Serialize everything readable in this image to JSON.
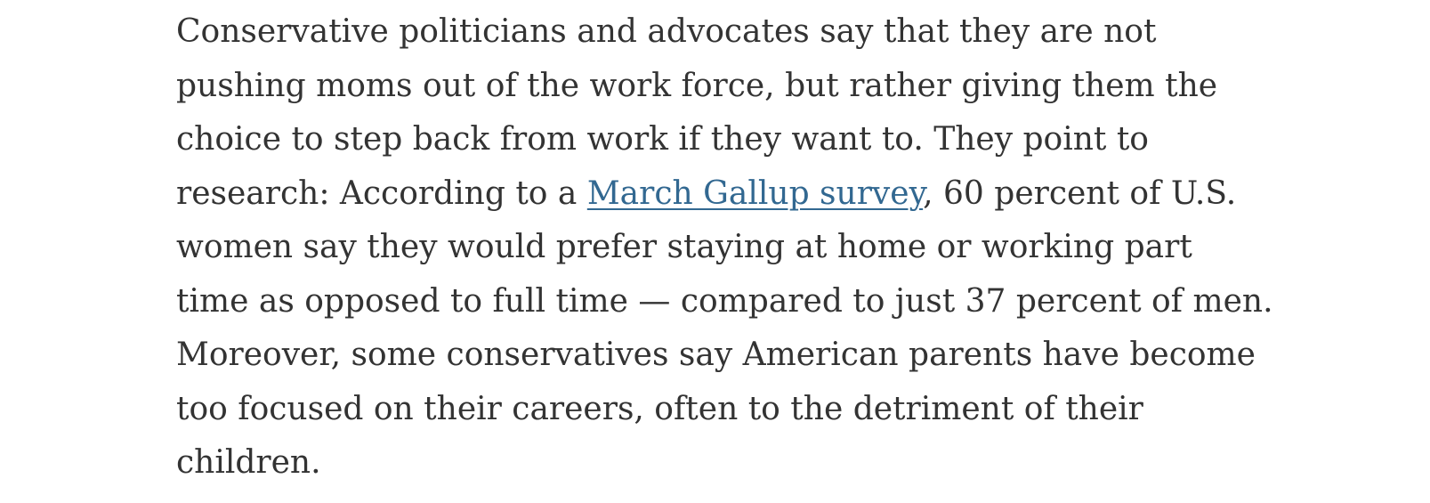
{
  "article": {
    "paragraph": {
      "lines": [
        "Conservative politicians and advocates say that they are not",
        "pushing moms out of the work force, but rather giving them the",
        "choice to step back from work if they want to. They point to",
        {
          "before": "research:  According to a ",
          "link": "March Gallup survey",
          "after": ", 60 percent of U.S."
        },
        "women say they would prefer staying at home or working part",
        "time as opposed to full time — compared to just 37 percent of men.",
        "Moreover, some conservatives say American parents have become",
        "too focused on their careers, often to the detriment of their",
        "children."
      ]
    }
  },
  "colors": {
    "text": "#333333",
    "link": "#326891",
    "background": "#ffffff"
  }
}
